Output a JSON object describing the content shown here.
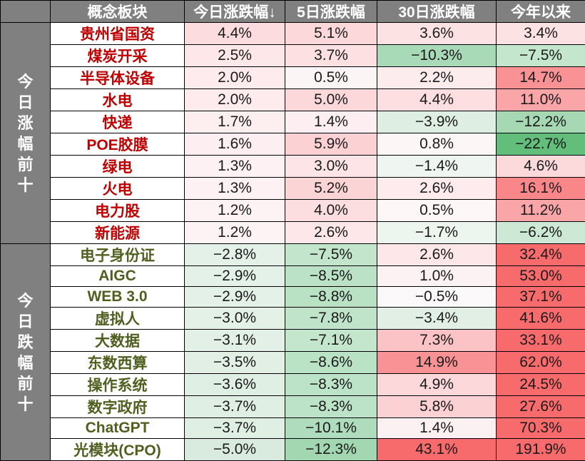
{
  "header": {
    "corner": "",
    "name": "概念板块",
    "today": "今日涨跌幅↓",
    "d5": "5日涨跌幅",
    "d30": "30日涨跌幅",
    "ytd": "今年以来"
  },
  "groups": [
    {
      "label": "今日涨幅前十",
      "type": "up"
    },
    {
      "label": "今日跌幅前十",
      "type": "down"
    }
  ],
  "colors": {
    "header_bg": "#808080",
    "up_text": "#c00000",
    "down_text": "#4f5f1f",
    "pos_max": "#f8696b",
    "neg_max": "#63be7b"
  },
  "rows": [
    {
      "name": "贵州省国资",
      "today": "4.4%",
      "d5": "5.1%",
      "d30": "3.6%",
      "ytd": "3.4%",
      "c": [
        "#fcdcde",
        "#fcd8da",
        "#fde2e4",
        "#fde2e4"
      ]
    },
    {
      "name": "煤炭开采",
      "today": "2.5%",
      "d5": "3.7%",
      "d30": "−10.3%",
      "ytd": "−7.5%",
      "c": [
        "#fde7e9",
        "#fce0e2",
        "#a9dab8",
        "#c4e6cd"
      ]
    },
    {
      "name": "半导体设备",
      "today": "2.0%",
      "d5": "0.5%",
      "d30": "2.2%",
      "ytd": "14.7%",
      "c": [
        "#fdebed",
        "#fcf5f6",
        "#fdecee",
        "#f99295"
      ]
    },
    {
      "name": "水电",
      "today": "2.0%",
      "d5": "5.0%",
      "d30": "4.4%",
      "ytd": "11.0%",
      "c": [
        "#fdebed",
        "#fcd8da",
        "#fddfe1",
        "#faa6a8"
      ]
    },
    {
      "name": "快递",
      "today": "1.7%",
      "d5": "1.4%",
      "d30": "−3.9%",
      "ytd": "−12.2%",
      "c": [
        "#fdeef0",
        "#fdeff1",
        "#dfeee3",
        "#a5d8b3"
      ]
    },
    {
      "name": "POE胶膜",
      "today": "1.6%",
      "d5": "5.9%",
      "d30": "0.8%",
      "ytd": "−22.7%",
      "c": [
        "#fdeff1",
        "#fbd1d3",
        "#fdf6f7",
        "#63be7b"
      ]
    },
    {
      "name": "绿电",
      "today": "1.3%",
      "d5": "3.0%",
      "d30": "−1.4%",
      "ytd": "4.6%",
      "c": [
        "#fdf1f3",
        "#fde4e6",
        "#eff6f1",
        "#fcdadc"
      ]
    },
    {
      "name": "火电",
      "today": "1.3%",
      "d5": "5.2%",
      "d30": "2.6%",
      "ytd": "16.1%",
      "c": [
        "#fdf1f3",
        "#fbd4d6",
        "#fdebed",
        "#f9878a"
      ]
    },
    {
      "name": "电力股",
      "today": "1.2%",
      "d5": "4.0%",
      "d30": "0.5%",
      "ytd": "11.2%",
      "c": [
        "#fdf2f4",
        "#fcdee0",
        "#fdf7f8",
        "#faa6a8"
      ]
    },
    {
      "name": "新能源",
      "today": "1.2%",
      "d5": "2.6%",
      "d30": "−1.7%",
      "ytd": "−6.2%",
      "c": [
        "#fdf2f4",
        "#fde7e9",
        "#edf5ef",
        "#cde9d5"
      ]
    },
    {
      "name": "电子身份证",
      "today": "−2.8%",
      "d5": "−7.5%",
      "d30": "2.6%",
      "ytd": "32.4%",
      "c": [
        "#e4f1e8",
        "#c2e5cc",
        "#fde7e9",
        "#f86b6d"
      ]
    },
    {
      "name": "AIGC",
      "today": "−2.9%",
      "d5": "−8.5%",
      "d30": "1.0%",
      "ytd": "53.0%",
      "c": [
        "#e4f1e8",
        "#bbe2c6",
        "#fcf2f3",
        "#f86b6d"
      ]
    },
    {
      "name": "WEB 3.0",
      "today": "−2.9%",
      "d5": "−8.8%",
      "d30": "−0.5%",
      "ytd": "37.1%",
      "c": [
        "#e4f1e8",
        "#b9e1c4",
        "#fbf9fa",
        "#f86b6d"
      ]
    },
    {
      "name": "虚拟人",
      "today": "−3.0%",
      "d5": "−7.8%",
      "d30": "−3.4%",
      "ytd": "41.6%",
      "c": [
        "#e3f1e7",
        "#c0e4ca",
        "#e1efe5",
        "#f86b6d"
      ]
    },
    {
      "name": "大数据",
      "today": "−3.1%",
      "d5": "−7.1%",
      "d30": "7.3%",
      "ytd": "33.1%",
      "c": [
        "#e3f0e7",
        "#c4e6cd",
        "#fbc3c5",
        "#f86b6d"
      ]
    },
    {
      "name": "东数西算",
      "today": "−3.5%",
      "d5": "−8.6%",
      "d30": "14.9%",
      "ytd": "62.0%",
      "c": [
        "#e1efe5",
        "#bae2c5",
        "#f99295",
        "#f86b6d"
      ]
    },
    {
      "name": "操作系统",
      "today": "−3.6%",
      "d5": "−8.3%",
      "d30": "4.9%",
      "ytd": "24.5%",
      "c": [
        "#e0efe4",
        "#bce3c7",
        "#fcd8da",
        "#f86b6d"
      ]
    },
    {
      "name": "数字政府",
      "today": "−3.7%",
      "d5": "−8.3%",
      "d30": "5.8%",
      "ytd": "27.6%",
      "c": [
        "#e0efe4",
        "#bce3c7",
        "#fbd1d3",
        "#f86b6d"
      ]
    },
    {
      "name": "ChatGPT",
      "today": "−3.7%",
      "d5": "−10.1%",
      "d30": "1.4%",
      "ytd": "70.3%",
      "c": [
        "#e0efe4",
        "#afdcbc",
        "#fcf1f2",
        "#f86b6d"
      ]
    },
    {
      "name": "光模块(CPO)",
      "today": "−5.0%",
      "d5": "−12.3%",
      "d30": "43.1%",
      "ytd": "191.9%",
      "c": [
        "#d8ebde",
        "#a2d7b1",
        "#f86b6d",
        "#f86b6d"
      ]
    }
  ]
}
